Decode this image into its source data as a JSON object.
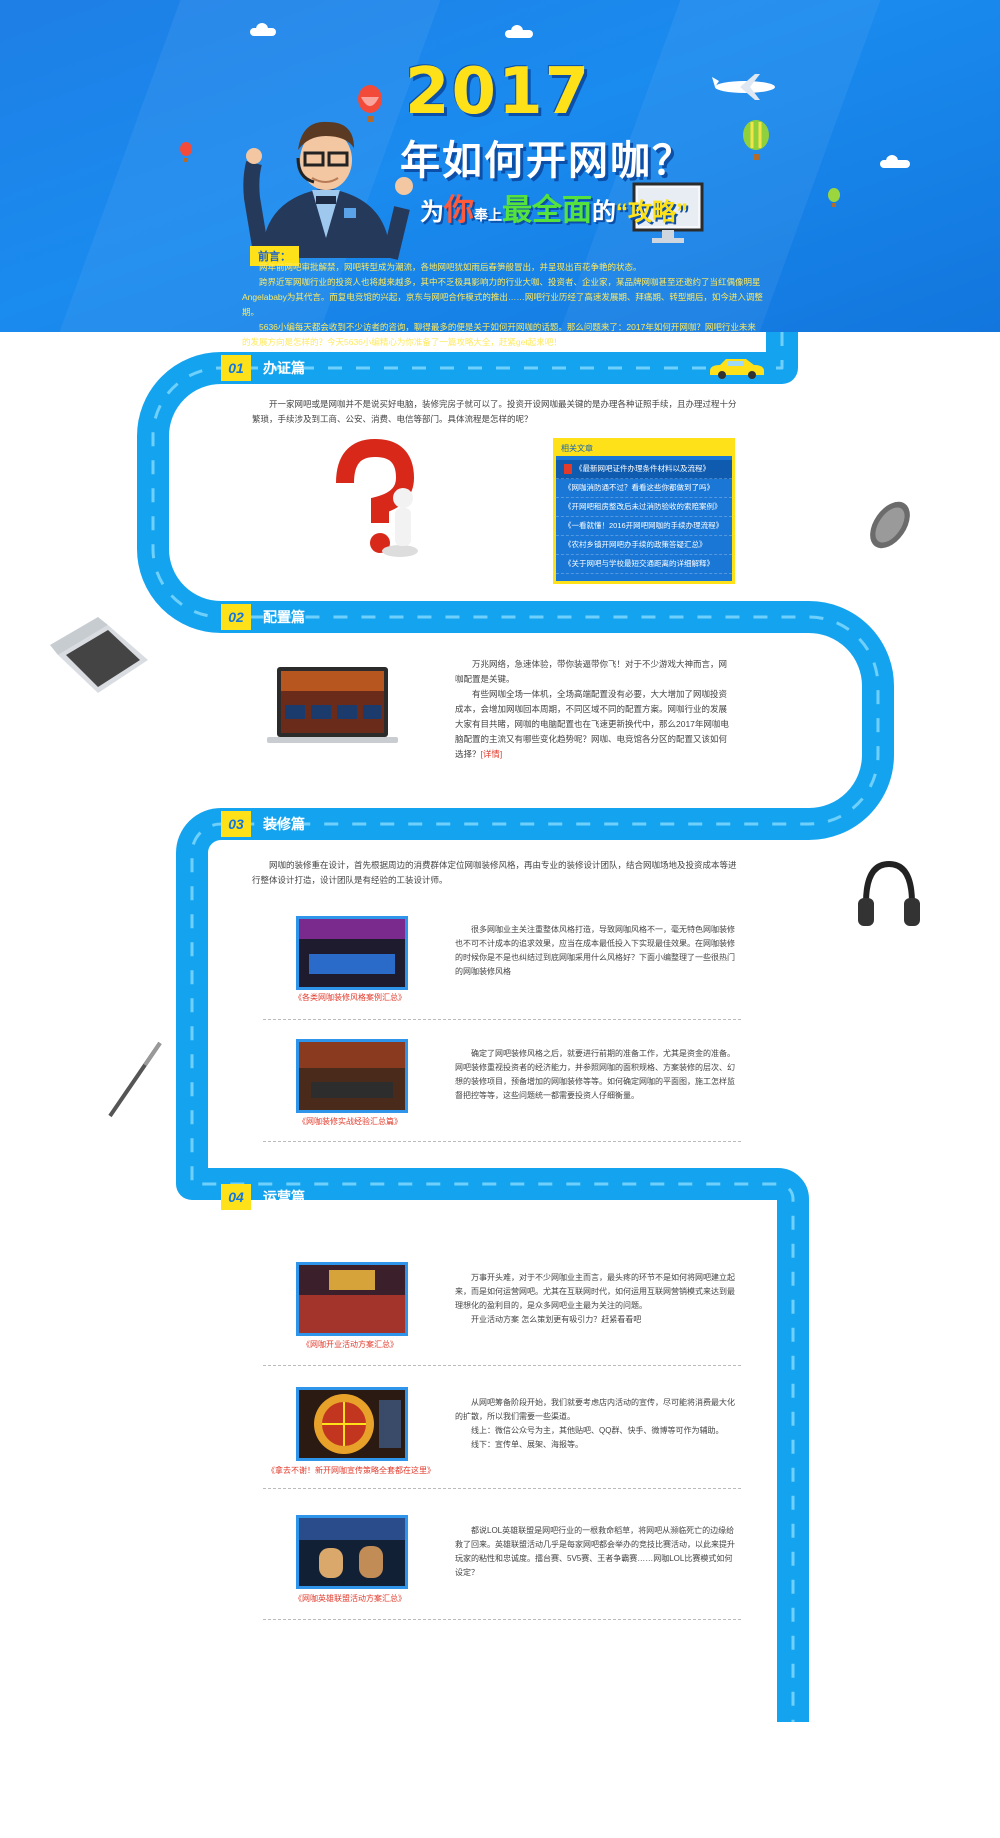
{
  "colors": {
    "brand_blue": "#1a8bef",
    "road_blue": "#14a4ef",
    "accent_yellow": "#ffe11a",
    "link_red": "#e23a2b"
  },
  "header": {
    "title_year": "2017",
    "title_main": "年如何开网咖？",
    "title_sub_1": "为",
    "title_sub_you": "你",
    "title_sub_2": "奉上",
    "title_sub_3": "最全面",
    "title_sub_4": "的",
    "title_sub_5": "“攻略”",
    "intro_label": "前言：",
    "intro_paragraphs": [
      "两年前网吧审批解禁，网吧转型成为潮流，各地网吧犹如雨后春笋般冒出，并呈现出百花争艳的状态。",
      "跨界近军网咖行业的投资人也将越来越多，其中不乏极具影响力的行业大咖、投资者、企业家，某品牌网咖甚至还邀约了当红偶像明星Angelababy为其代言。而复电竞馆的兴起，京东与网吧合作模式的推出……网吧行业历经了高速发展期、拜痛期、转型期后，如今进入调整期。",
      "5636小编每天都会收到不少访者的咨询，聊得最多的便是关于如何开网咖的话题。那么问题来了：2017年如何开网咖？网吧行业未来的发展方向是怎样的？今天5636小编精心为你准备了一篇攻略大全，赶紧get起来吧！"
    ]
  },
  "sections": [
    {
      "num": "01",
      "title": "办证篇",
      "intro": "开一家网吧或是网咖并不是说买好电脑，装修完房子就可以了。投资开设网咖最关键的是办理各种证照手续，且办理过程十分繁琐，手续涉及到工商、公安、消费、电信等部门。具体流程是怎样的呢？",
      "related": {
        "head": "相关文章",
        "items": [
          "《最新网吧证件办理条件材料以及流程》",
          "《网咖消防通不过？看看这些你都做到了吗》",
          "《开网吧租房整改后未过消防验收的索赔案例》",
          "《一看就懂！2016开网吧网咖的手续办理流程》",
          "《农村乡镇开网吧办手续的政策答疑汇总》",
          "《关于网吧与学校最短交通距离的详细解释》"
        ]
      }
    },
    {
      "num": "02",
      "title": "配置篇",
      "paragraphs": [
        "万兆网络，急速体验，带你装逼带你飞！对于不少游戏大神而言，网咖配置是关键。",
        "有些网咖全场一体机，全场高端配置没有必要，大大增加了网咖投资成本，会增加网咖回本周期，不同区域不同的配置方案。网咖行业的发展大家有目共睹，网咖的电脑配置也在飞速更新换代中，那么2017年网咖电脑配置的主流又有哪些变化趋势呢？网咖、电竞馆各分区的配置又该如何选择？"
      ],
      "more": "[详情]"
    },
    {
      "num": "03",
      "title": "装修篇",
      "intro": "网咖的装修重在设计，首先根据周边的消费群体定位网咖装修风格，再由专业的装修设计团队，结合网咖场地及投资成本等进行整体设计打造，设计团队是有经验的工装设计师。",
      "items": [
        {
          "caption": "《各类网咖装修风格案例汇总》",
          "text": "很多网咖业主关注重整体风格打造，导致网咖风格不一，毫无特色网咖装修也不可不计成本的追求效果，应当在成本最低投入下实现最佳效果。在网咖装修的时候你是不是也纠结过到底网咖采用什么风格好？下面小编整理了一些很热门的网咖装修风格"
        },
        {
          "caption": "《网咖装修实战经验汇总篇》",
          "text": "确定了网吧装修风格之后，就要进行前期的准备工作，尤其是资金的准备。网吧装修重视投资者的经济能力，并参照网咖的面积规格、方案装修的层次、幻想的装修项目，预备增加的网咖装修等等。如何确定网咖的平面图，施工怎样监督把控等等，这些问题统一都需要投资人仔细衡量。"
        }
      ]
    },
    {
      "num": "04",
      "title": "运营篇",
      "items": [
        {
          "caption": "《网咖开业活动方案汇总》",
          "paragraphs": [
            "万事开头难，对于不少网咖业主而言，最头疼的环节不是如何将网吧建立起来，而是如何运营网吧。尤其在互联网时代，如何运用互联网营销模式来达到最理想化的盈利目的，是众多网吧业主最为关注的问题。",
            "开业活动方案 怎么策划更有吸引力？赶紧看看吧"
          ]
        },
        {
          "caption": "《拿去不谢！新开网咖宣传策略全套都在这里》",
          "paragraphs": [
            "从网吧筹备阶段开始，我们就要考虑店内活动的宣传，尽可能将消费最大化的扩散，所以我们需要一些渠道。",
            "线上：微信公众号为主，其他贴吧、QQ群、快手、微博等可作为辅助。",
            "线下：宣传单、展架、海报等。"
          ]
        },
        {
          "caption": "《网咖英雄联盟活动方案汇总》",
          "paragraphs": [
            "都说LOL英雄联盟是网吧行业的一根救命稻草，将网吧从濒临死亡的边缘给救了回来。英雄联盟活动几乎是每家网吧都会举办的竞技比赛活动，以此来提升玩家的粘性和忠诚度。擂台赛、5V5赛、王者争霸赛……网咖LOL比赛模式如何设定？"
          ]
        }
      ]
    }
  ]
}
